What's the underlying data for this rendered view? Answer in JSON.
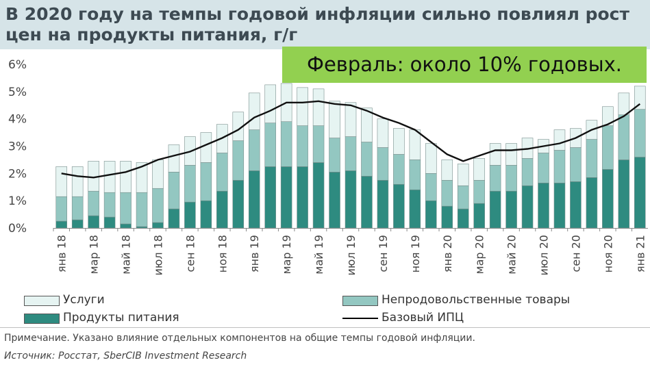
{
  "title": "В 2020 году на темпы годовой инфляции сильно повлиял рост цен на продукты питания, г/г",
  "callout": "Февраль: около 10% годовых.",
  "note": "Примечание. Указано влияние отдельных компонентов на общие темпы годовой инфляции.",
  "source": "Источник: Росстат, SberCIB Investment Research",
  "colors": {
    "food": "#2e8b80",
    "nonfood": "#93c7c1",
    "services": "#e6f4f2",
    "core": "#111111"
  },
  "legend": {
    "services": "Услуги",
    "nonfood": "Непродовольственные товары",
    "food": "Продукты питания",
    "core": "Базовый ИПЦ"
  },
  "chart_data": {
    "type": "bar",
    "stacked": true,
    "ylim": [
      0,
      6
    ],
    "yticks": [
      "0%",
      "1%",
      "2%",
      "3%",
      "4%",
      "5%",
      "6%"
    ],
    "categories": [
      "янв 18",
      "фев 18",
      "мар 18",
      "апр 18",
      "май 18",
      "июн 18",
      "июл 18",
      "авг 18",
      "сен 18",
      "окт 18",
      "ноя 18",
      "дек 18",
      "янв 19",
      "фев 19",
      "мар 19",
      "апр 19",
      "май 19",
      "июн 19",
      "июл 19",
      "авг 19",
      "сен 19",
      "окт 19",
      "ноя 19",
      "дек 19",
      "янв 20",
      "фев 20",
      "мар 20",
      "апр 20",
      "май 20",
      "июн 20",
      "июл 20",
      "авг 20",
      "сен 20",
      "окт 20",
      "ноя 20",
      "дек 20",
      "янв 21"
    ],
    "xtick_labels": [
      "янв 18",
      "",
      "мар 18",
      "",
      "май 18",
      "",
      "июл 18",
      "",
      "сен 18",
      "",
      "ноя 18",
      "",
      "янв 19",
      "",
      "мар 19",
      "",
      "май 19",
      "",
      "июл 19",
      "",
      "сен 19",
      "",
      "ноя 19",
      "",
      "янв 20",
      "",
      "мар 20",
      "",
      "май 20",
      "",
      "июл 20",
      "",
      "сен 20",
      "",
      "ноя 20",
      "",
      "янв 21"
    ],
    "series": [
      {
        "name": "Продукты питания",
        "key": "food",
        "values": [
          0.25,
          0.3,
          0.45,
          0.4,
          0.15,
          0.05,
          0.2,
          0.7,
          0.95,
          1.0,
          1.35,
          1.75,
          2.1,
          2.25,
          2.25,
          2.25,
          2.4,
          2.05,
          2.1,
          1.9,
          1.75,
          1.6,
          1.4,
          1.0,
          0.8,
          0.7,
          0.9,
          1.35,
          1.35,
          1.55,
          1.65,
          1.65,
          1.7,
          1.85,
          2.15,
          2.5,
          2.6
        ]
      },
      {
        "name": "Непродовольственные товары",
        "key": "nonfood",
        "values": [
          0.9,
          0.85,
          0.9,
          0.9,
          1.15,
          1.25,
          1.25,
          1.35,
          1.35,
          1.4,
          1.4,
          1.45,
          1.5,
          1.6,
          1.65,
          1.5,
          1.35,
          1.25,
          1.25,
          1.25,
          1.2,
          1.1,
          1.1,
          1.0,
          0.95,
          0.85,
          0.85,
          0.95,
          0.95,
          1.0,
          1.1,
          1.2,
          1.25,
          1.4,
          1.6,
          1.65,
          1.75
        ]
      },
      {
        "name": "Услуги",
        "key": "services",
        "values": [
          1.1,
          1.1,
          1.1,
          1.15,
          1.15,
          1.1,
          1.05,
          1.0,
          1.05,
          1.1,
          1.05,
          1.05,
          1.35,
          1.4,
          1.4,
          1.4,
          1.35,
          1.35,
          1.25,
          1.25,
          1.05,
          0.95,
          1.1,
          1.1,
          0.75,
          0.8,
          0.8,
          0.8,
          0.8,
          0.75,
          0.5,
          0.75,
          0.7,
          0.7,
          0.7,
          0.8,
          0.85
        ]
      },
      {
        "name": "Базовый ИПЦ",
        "key": "core",
        "type": "line",
        "values": [
          2.0,
          1.9,
          1.85,
          1.95,
          2.05,
          2.25,
          2.5,
          2.65,
          2.8,
          3.05,
          3.3,
          3.6,
          4.05,
          4.3,
          4.6,
          4.6,
          4.65,
          4.55,
          4.5,
          4.3,
          4.05,
          3.85,
          3.6,
          3.15,
          2.7,
          2.45,
          2.65,
          2.85,
          2.85,
          2.9,
          3.0,
          3.1,
          3.3,
          3.6,
          3.8,
          4.1,
          4.55
        ]
      }
    ]
  }
}
